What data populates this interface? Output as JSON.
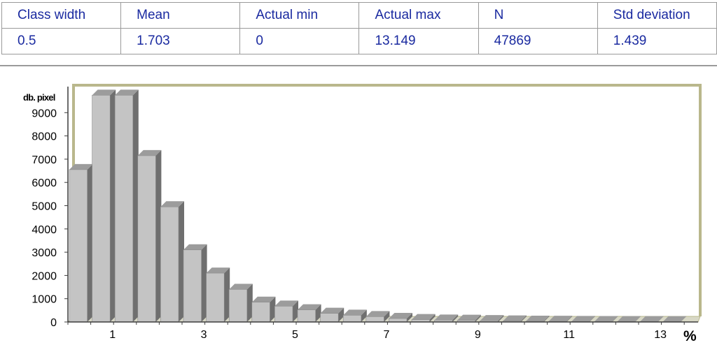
{
  "stats_table": {
    "headers": [
      "Class width",
      "Mean",
      "Actual min",
      "Actual max",
      "N",
      "Std deviation"
    ],
    "values": [
      "0.5",
      "1.703",
      "0",
      "13.149",
      "47869",
      "1.439"
    ]
  },
  "chart_data": {
    "type": "bar",
    "ylabel": "db. pixel",
    "xlabel": "%",
    "ylim": [
      0,
      10000
    ],
    "yticks": [
      0,
      1000,
      2000,
      3000,
      4000,
      5000,
      6000,
      7000,
      8000,
      9000
    ],
    "xticks": [
      "1",
      "3",
      "5",
      "7",
      "9",
      "11",
      "13"
    ],
    "bin_width": 0.5,
    "values": [
      6550,
      9750,
      9750,
      7150,
      4950,
      3100,
      2100,
      1400,
      850,
      680,
      520,
      370,
      290,
      230,
      150,
      100,
      80,
      70,
      55,
      40,
      30,
      25,
      20,
      15,
      12,
      10,
      8
    ],
    "grid": false,
    "colors": {
      "bar_front": "#c4c4c4",
      "bar_side": "#6f6f6f",
      "bar_top": "#9c9c9c",
      "frame": "#b9b78c",
      "axis": "#3c3c3c"
    }
  }
}
